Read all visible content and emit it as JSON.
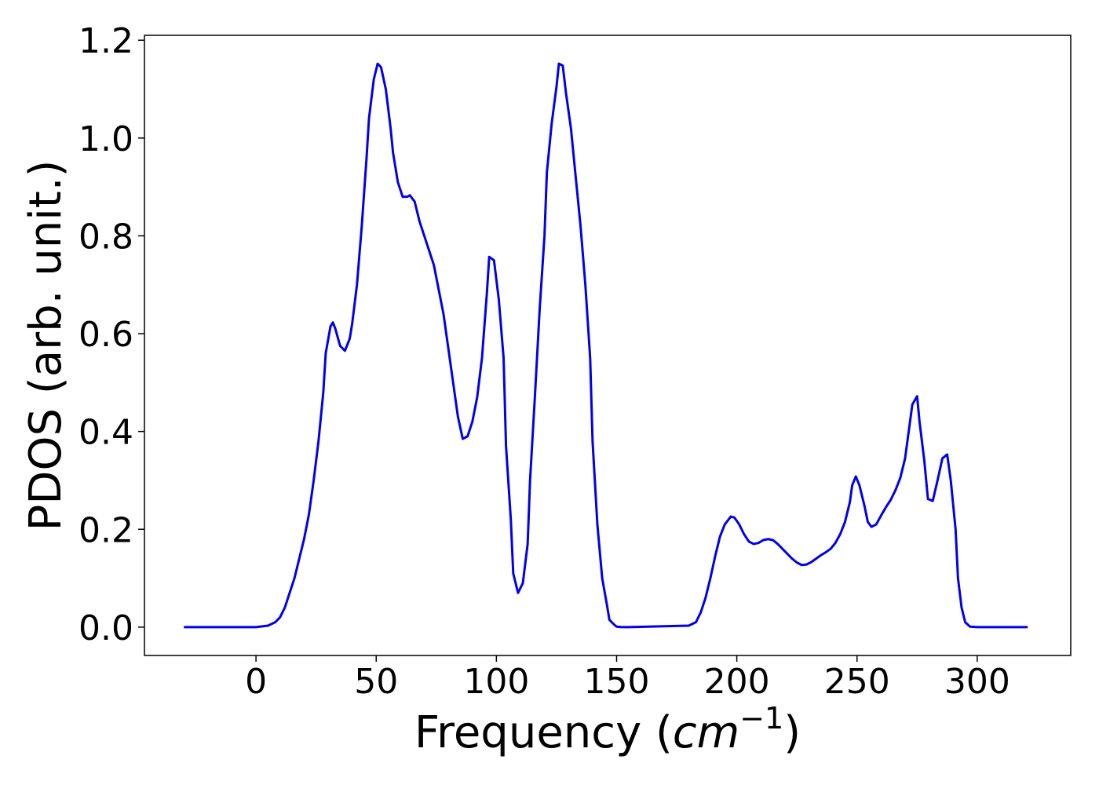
{
  "chart_data": {
    "type": "line",
    "ylabel": "PDOS (arb. unit.)",
    "xlabel_parts": [
      "Frequency (",
      "cm",
      "−1",
      ")"
    ],
    "xlim": [
      -46.4,
      338.9
    ],
    "ylim": [
      -0.058,
      1.21
    ],
    "xticks": [
      0,
      50,
      100,
      150,
      200,
      250,
      300
    ],
    "yticks": [
      {
        "value": 0,
        "label": "0.0"
      },
      {
        "value": 0.2,
        "label": "0.2"
      },
      {
        "value": 0.4,
        "label": "0.4"
      },
      {
        "value": 0.6,
        "label": "0.6"
      },
      {
        "value": 0.8,
        "label": "0.8"
      },
      {
        "value": 1.0,
        "label": "1.0"
      },
      {
        "value": 1.2,
        "label": "1.2"
      }
    ],
    "series": [
      {
        "color": "#0000ee",
        "x": [
          -30,
          0,
          5,
          8,
          10,
          12,
          14,
          16,
          18,
          20,
          22,
          24,
          26,
          28,
          29,
          31,
          32,
          33,
          35,
          37,
          39,
          40,
          42,
          44,
          46,
          47,
          49,
          50.6,
          52,
          54,
          56,
          57,
          59,
          61,
          63,
          64,
          66,
          68,
          70,
          72,
          74,
          76,
          78,
          80,
          82,
          84,
          86,
          88,
          90,
          92,
          94,
          96,
          97,
          99,
          101,
          103,
          104,
          106,
          107,
          109,
          111,
          113,
          114,
          116,
          118,
          120,
          121,
          123,
          125,
          126,
          127.6,
          129,
          131,
          133,
          135,
          137,
          139,
          140,
          142,
          144,
          146,
          147,
          149,
          150,
          152,
          155,
          180,
          183,
          185,
          187,
          189,
          191,
          193,
          195,
          197.5,
          199,
          201,
          203,
          205,
          207,
          209,
          211,
          213,
          215,
          217,
          219,
          221,
          223,
          225,
          227,
          229,
          231,
          233,
          235,
          237,
          239,
          241,
          243,
          245,
          247,
          248,
          249.5,
          251,
          253,
          254.5,
          256,
          258,
          260,
          262,
          264,
          266,
          268,
          270,
          271.5,
          273,
          275,
          276,
          278,
          279.5,
          281.5,
          283.5,
          285.5,
          287.5,
          289,
          291,
          292,
          293.5,
          295,
          297,
          300,
          321
        ],
        "values": [
          0,
          0,
          0.003,
          0.01,
          0.02,
          0.04,
          0.07,
          0.1,
          0.14,
          0.18,
          0.23,
          0.3,
          0.38,
          0.48,
          0.56,
          0.615,
          0.623,
          0.61,
          0.575,
          0.565,
          0.59,
          0.62,
          0.7,
          0.82,
          0.96,
          1.04,
          1.12,
          1.152,
          1.145,
          1.1,
          1.02,
          0.97,
          0.91,
          0.88,
          0.88,
          0.883,
          0.87,
          0.83,
          0.8,
          0.77,
          0.74,
          0.69,
          0.64,
          0.57,
          0.5,
          0.43,
          0.385,
          0.39,
          0.42,
          0.47,
          0.55,
          0.68,
          0.757,
          0.75,
          0.67,
          0.55,
          0.37,
          0.22,
          0.11,
          0.07,
          0.09,
          0.17,
          0.3,
          0.47,
          0.65,
          0.8,
          0.93,
          1.03,
          1.105,
          1.152,
          1.148,
          1.09,
          1.02,
          0.92,
          0.82,
          0.7,
          0.55,
          0.38,
          0.21,
          0.1,
          0.045,
          0.015,
          0.005,
          0.001,
          0,
          0,
          0.003,
          0.01,
          0.03,
          0.06,
          0.1,
          0.145,
          0.185,
          0.21,
          0.226,
          0.224,
          0.21,
          0.19,
          0.175,
          0.17,
          0.172,
          0.178,
          0.18,
          0.178,
          0.17,
          0.16,
          0.15,
          0.14,
          0.132,
          0.127,
          0.128,
          0.133,
          0.14,
          0.147,
          0.153,
          0.16,
          0.172,
          0.19,
          0.215,
          0.255,
          0.29,
          0.308,
          0.29,
          0.25,
          0.215,
          0.205,
          0.21,
          0.228,
          0.245,
          0.26,
          0.28,
          0.305,
          0.345,
          0.4,
          0.455,
          0.472,
          0.42,
          0.34,
          0.262,
          0.258,
          0.3,
          0.345,
          0.353,
          0.3,
          0.2,
          0.1,
          0.04,
          0.01,
          0.001,
          0,
          0
        ]
      }
    ]
  }
}
